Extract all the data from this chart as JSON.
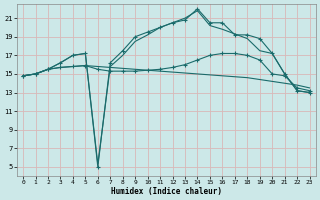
{
  "title": "",
  "xlabel": "Humidex (Indice chaleur)",
  "bg_color": "#cce8e8",
  "grid_color": "#d9b8b8",
  "line_color": "#1a6b6b",
  "xlim": [
    -0.5,
    23.5
  ],
  "ylim": [
    4,
    22.5
  ],
  "yticks": [
    5,
    7,
    9,
    11,
    13,
    15,
    17,
    19,
    21
  ],
  "xticks": [
    0,
    1,
    2,
    3,
    4,
    5,
    6,
    7,
    8,
    9,
    10,
    11,
    12,
    13,
    14,
    15,
    16,
    17,
    18,
    19,
    20,
    21,
    22,
    23
  ],
  "s1_x": [
    0,
    1,
    2,
    3,
    4,
    5,
    6,
    7,
    8,
    9,
    10,
    11,
    12,
    13,
    14,
    15,
    16,
    17,
    18,
    19,
    20,
    21,
    22,
    23
  ],
  "s1_y": [
    14.8,
    15.0,
    15.5,
    15.7,
    15.8,
    15.9,
    15.8,
    15.7,
    15.6,
    15.5,
    15.4,
    15.3,
    15.2,
    15.1,
    15.0,
    14.9,
    14.8,
    14.7,
    14.6,
    14.4,
    14.2,
    14.0,
    13.8,
    13.5
  ],
  "s2_x": [
    0,
    1,
    2,
    3,
    4,
    5,
    6,
    7,
    8,
    9,
    10,
    11,
    12,
    13,
    14,
    15,
    16,
    17,
    18,
    19,
    20,
    21,
    22,
    23
  ],
  "s2_y": [
    14.8,
    15.0,
    15.5,
    16.2,
    17.0,
    17.2,
    5.0,
    16.2,
    17.5,
    19.0,
    19.5,
    20.0,
    20.5,
    20.8,
    22.0,
    20.5,
    20.5,
    19.2,
    19.2,
    18.8,
    17.2,
    15.0,
    13.2,
    13.0
  ],
  "s3_x": [
    0,
    1,
    2,
    3,
    4,
    5,
    6,
    7,
    8,
    9,
    10,
    11,
    12,
    13,
    14,
    15,
    16,
    17,
    18,
    19,
    20,
    21,
    22,
    23
  ],
  "s3_y": [
    14.8,
    15.0,
    15.5,
    16.2,
    17.0,
    17.2,
    5.3,
    15.8,
    17.0,
    18.5,
    19.2,
    20.0,
    20.5,
    21.0,
    21.8,
    20.2,
    19.8,
    19.3,
    18.8,
    17.5,
    17.2,
    15.0,
    13.2,
    13.0
  ],
  "s4_x": [
    0,
    1,
    2,
    3,
    4,
    5,
    6,
    7,
    8,
    9,
    10,
    11,
    12,
    13,
    14,
    15,
    16,
    17,
    18,
    19,
    20,
    21,
    22,
    23
  ],
  "s4_y": [
    14.8,
    15.0,
    15.5,
    15.7,
    15.8,
    15.9,
    15.5,
    15.3,
    15.3,
    15.3,
    15.4,
    15.5,
    15.7,
    16.0,
    16.5,
    17.0,
    17.2,
    17.2,
    17.0,
    16.5,
    15.0,
    14.8,
    13.5,
    13.2
  ]
}
